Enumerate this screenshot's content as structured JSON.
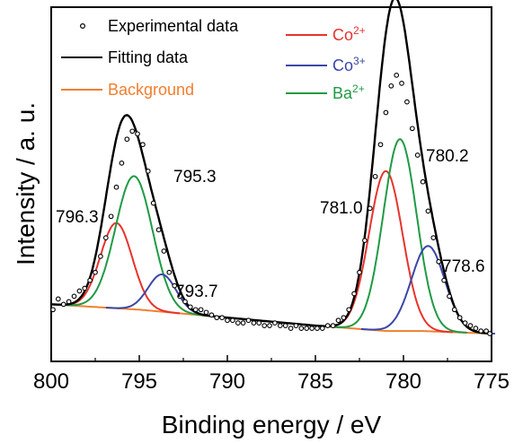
{
  "chart_data": {
    "type": "line",
    "xlabel": "Binding energy / eV",
    "ylabel": "Intensity / a. u.",
    "xlim": [
      800,
      775
    ],
    "x_ticks": [
      "800",
      "795",
      "790",
      "785",
      "780",
      "775"
    ],
    "legend": [
      {
        "name": "Experimental data",
        "color": "#000000",
        "marker": "circle"
      },
      {
        "name": "Fitting data",
        "color": "#000000",
        "marker": "line"
      },
      {
        "name": "Background",
        "color": "#f07f2f",
        "marker": "line"
      },
      {
        "name": "Co",
        "sup": "2+",
        "color": "#e8332c",
        "marker": "line"
      },
      {
        "name": "Co",
        "sup": "3+",
        "color": "#3a46a8",
        "marker": "line"
      },
      {
        "name": "Ba",
        "sup": "2+",
        "color": "#1f9a45",
        "marker": "line"
      }
    ],
    "peaks": [
      {
        "label": "796.3",
        "center": 796.3,
        "height": 0.32,
        "width": 0.9,
        "series": "Co2+"
      },
      {
        "label": "795.3",
        "center": 795.3,
        "height": 0.5,
        "width": 1.05,
        "series": "Ba2+"
      },
      {
        "label": "793.7",
        "center": 793.7,
        "height": 0.14,
        "width": 0.8,
        "series": "Co3+"
      },
      {
        "label": "781.0",
        "center": 781.0,
        "height": 0.6,
        "width": 0.95,
        "series": "Co2+"
      },
      {
        "label": "780.2",
        "center": 780.2,
        "height": 0.72,
        "width": 0.95,
        "series": "Ba2+"
      },
      {
        "label": "778.6",
        "center": 778.6,
        "height": 0.32,
        "width": 0.95,
        "series": "Co3+"
      }
    ],
    "background": {
      "x": [
        800,
        795,
        790,
        785,
        781,
        779,
        777,
        775
      ],
      "y": [
        0.12,
        0.1,
        0.07,
        0.04,
        0.02,
        0.02,
        0.015,
        0.01
      ]
    },
    "experimental_points": [
      [
        799.9,
        0.1
      ],
      [
        799.6,
        0.14
      ],
      [
        799.3,
        0.12
      ],
      [
        799.0,
        0.13
      ],
      [
        798.7,
        0.15
      ],
      [
        798.4,
        0.17
      ],
      [
        798.1,
        0.18
      ],
      [
        797.8,
        0.21
      ],
      [
        797.5,
        0.24
      ],
      [
        797.2,
        0.3
      ],
      [
        796.9,
        0.37
      ],
      [
        796.6,
        0.45
      ],
      [
        796.3,
        0.56
      ],
      [
        796.0,
        0.65
      ],
      [
        795.7,
        0.74
      ],
      [
        795.4,
        0.77
      ],
      [
        795.1,
        0.76
      ],
      [
        794.8,
        0.72
      ],
      [
        794.5,
        0.62
      ],
      [
        794.2,
        0.5
      ],
      [
        793.9,
        0.4
      ],
      [
        793.6,
        0.32
      ],
      [
        793.3,
        0.24
      ],
      [
        793.0,
        0.19
      ],
      [
        792.7,
        0.15
      ],
      [
        792.4,
        0.13
      ],
      [
        792.1,
        0.11
      ],
      [
        791.8,
        0.1
      ],
      [
        791.5,
        0.1
      ],
      [
        791.2,
        0.09
      ],
      [
        790.9,
        0.08
      ],
      [
        790.6,
        0.07
      ],
      [
        790.3,
        0.07
      ],
      [
        790.0,
        0.06
      ],
      [
        789.7,
        0.06
      ],
      [
        789.4,
        0.05
      ],
      [
        789.1,
        0.05
      ],
      [
        788.8,
        0.06
      ],
      [
        788.5,
        0.05
      ],
      [
        788.2,
        0.05
      ],
      [
        787.9,
        0.04
      ],
      [
        787.6,
        0.04
      ],
      [
        787.3,
        0.05
      ],
      [
        787.0,
        0.04
      ],
      [
        786.7,
        0.04
      ],
      [
        786.4,
        0.03
      ],
      [
        786.1,
        0.04
      ],
      [
        785.8,
        0.03
      ],
      [
        785.5,
        0.03
      ],
      [
        785.2,
        0.03
      ],
      [
        784.9,
        0.03
      ],
      [
        784.6,
        0.03
      ],
      [
        784.3,
        0.04
      ],
      [
        784.0,
        0.04
      ],
      [
        783.7,
        0.06
      ],
      [
        783.4,
        0.07
      ],
      [
        783.1,
        0.1
      ],
      [
        782.8,
        0.16
      ],
      [
        782.5,
        0.24
      ],
      [
        782.2,
        0.36
      ],
      [
        781.9,
        0.48
      ],
      [
        781.6,
        0.6
      ],
      [
        781.3,
        0.72
      ],
      [
        781.0,
        0.84
      ],
      [
        780.7,
        0.94
      ],
      [
        780.4,
        0.98
      ],
      [
        780.1,
        0.95
      ],
      [
        779.8,
        0.88
      ],
      [
        779.5,
        0.78
      ],
      [
        779.2,
        0.68
      ],
      [
        778.9,
        0.58
      ],
      [
        778.6,
        0.47
      ],
      [
        778.3,
        0.37
      ],
      [
        778.0,
        0.28
      ],
      [
        777.7,
        0.21
      ],
      [
        777.4,
        0.15
      ],
      [
        777.1,
        0.1
      ],
      [
        776.8,
        0.07
      ],
      [
        776.5,
        0.05
      ],
      [
        776.2,
        0.04
      ],
      [
        775.9,
        0.03
      ],
      [
        775.6,
        0.02
      ],
      [
        775.3,
        0.02
      ],
      [
        775.1,
        0.01
      ]
    ]
  }
}
